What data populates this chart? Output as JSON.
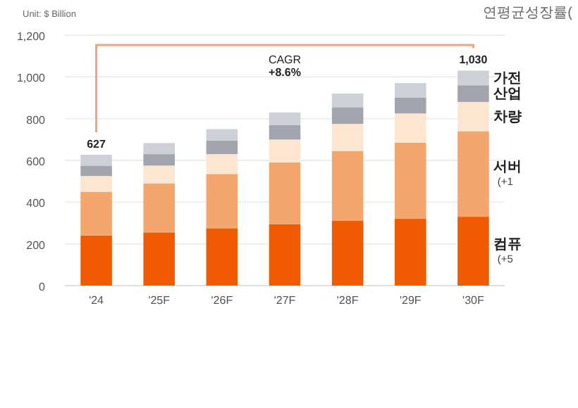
{
  "chart_data": {
    "type": "bar",
    "stacked": true,
    "categories": [
      "'24",
      "'25F",
      "'26F",
      "'27F",
      "'28F",
      "'29F",
      "'30F"
    ],
    "series": [
      {
        "name": "컴퓨",
        "color": "#f05a00",
        "values": [
          240,
          255,
          275,
          295,
          310,
          320,
          330
        ]
      },
      {
        "name": "서버",
        "color": "#f5a66c",
        "values": [
          210,
          235,
          260,
          295,
          335,
          365,
          410
        ]
      },
      {
        "name": "차량",
        "color": "#fde6cf",
        "values": [
          75,
          85,
          95,
          110,
          130,
          140,
          140
        ]
      },
      {
        "name": "산업",
        "color": "#a2a5ae",
        "values": [
          50,
          55,
          65,
          70,
          80,
          75,
          80
        ]
      },
      {
        "name": "가전",
        "color": "#cdd1d7",
        "values": [
          52,
          53,
          55,
          60,
          65,
          70,
          70
        ]
      }
    ],
    "totals": [
      "627",
      null,
      null,
      null,
      null,
      null,
      "1,030"
    ],
    "ylim": [
      0,
      1200
    ],
    "yticks": [
      0,
      200,
      400,
      600,
      800,
      {
        "value": 1000,
        "label": "1,000"
      },
      {
        "value": 1200,
        "label": "1,200"
      }
    ],
    "grid": "y",
    "annotations": [
      "Unit: $ Billion",
      "연평균성장률(",
      "CAGR\n+8.6%",
      "(+1",
      "(+5"
    ]
  }
}
